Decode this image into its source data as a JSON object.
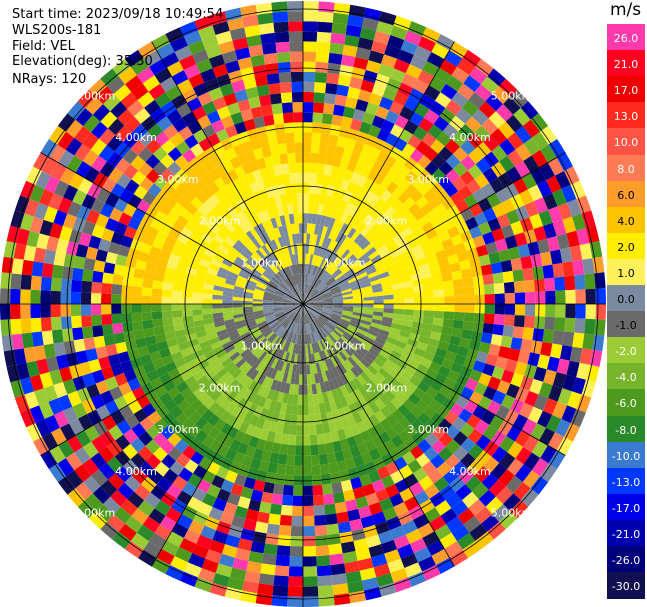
{
  "header": {
    "start_time": "Start time: 2023/09/18 10:49:54",
    "site": "WLS200s-181",
    "field": "Field: VEL",
    "elevation": "Elevation(deg): 35.30",
    "nrays": "NRays: 120"
  },
  "ppi": {
    "range_rings": [
      {
        "label": "1.00km"
      },
      {
        "label": "2.00km"
      },
      {
        "label": "3.00km"
      },
      {
        "label": "4.00km"
      },
      {
        "label": "5.00km"
      }
    ],
    "nrays": 120
  },
  "colorbar": {
    "unit": "m/s",
    "bins": [
      {
        "label": "26.0",
        "color": "#ff3bab"
      },
      {
        "label": "21.0",
        "color": "#ff0020"
      },
      {
        "label": "17.0",
        "color": "#f00000"
      },
      {
        "label": "13.0",
        "color": "#ff2a1e"
      },
      {
        "label": "10.0",
        "color": "#ff5346"
      },
      {
        "label": "8.0",
        "color": "#ff7a55"
      },
      {
        "label": "6.0",
        "color": "#ff9d2a"
      },
      {
        "label": "4.0",
        "color": "#ffc400"
      },
      {
        "label": "2.0",
        "color": "#ffee00"
      },
      {
        "label": "1.0",
        "color": "#fff15a"
      },
      {
        "label": "0.0",
        "color": "#7b8aa0"
      },
      {
        "label": "-1.0",
        "color": "#6a6a6a"
      },
      {
        "label": "-2.0",
        "color": "#9ccc35"
      },
      {
        "label": "-4.0",
        "color": "#76b52b"
      },
      {
        "label": "-6.0",
        "color": "#4e9a1f"
      },
      {
        "label": "-8.0",
        "color": "#2a8a2a"
      },
      {
        "label": "-10.0",
        "color": "#3a7ad0"
      },
      {
        "label": "-13.0",
        "color": "#0038ff"
      },
      {
        "label": "-17.0",
        "color": "#0000e8"
      },
      {
        "label": "-21.0",
        "color": "#0000b0"
      },
      {
        "label": "-26.0",
        "color": "#00007a"
      },
      {
        "label": "-30.0",
        "color": "#101050"
      }
    ]
  }
}
